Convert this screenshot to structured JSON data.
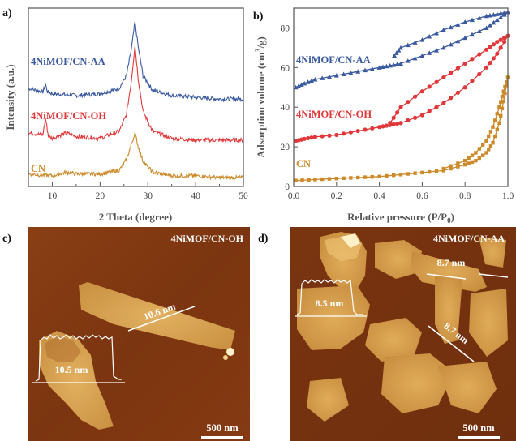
{
  "panels": {
    "a": "a)",
    "b": "b)",
    "c": "c)",
    "d": "d)"
  },
  "colors": {
    "aa": "#3a5aa0",
    "oh": "#e0383a",
    "cn": "#cc8a2a",
    "axis": "#555555"
  },
  "chart_data": [
    {
      "id": "xrd",
      "type": "line",
      "xlabel": "2 Theta (degree)",
      "ylabel": "Intensity (a.u.)",
      "xlim": [
        5,
        50
      ],
      "xticks": [
        "10",
        "20",
        "30",
        "40",
        "50"
      ],
      "series": [
        {
          "name": "4NiMOF/CN-AA",
          "key": "aa",
          "x": [
            5,
            8,
            8.6,
            9,
            10,
            15,
            20,
            24,
            25.5,
            26.5,
            27.3,
            28,
            29,
            31,
            35,
            40,
            45,
            50
          ],
          "y": [
            55,
            53,
            57,
            53,
            52,
            51,
            52,
            55,
            62,
            76,
            92,
            78,
            62,
            54,
            51,
            50,
            49,
            49
          ]
        },
        {
          "name": "4NiMOF/CN-OH",
          "key": "oh",
          "x": [
            5,
            8,
            8.6,
            9.2,
            10,
            13,
            15,
            20,
            24,
            25.5,
            26.5,
            27.3,
            28,
            29,
            31,
            35,
            40,
            45,
            50
          ],
          "y": [
            30,
            29,
            38,
            28,
            27,
            30,
            28,
            27,
            31,
            40,
            58,
            79,
            60,
            42,
            31,
            27,
            26,
            26,
            26
          ]
        },
        {
          "name": "CN",
          "key": "cn",
          "x": [
            5,
            10,
            13,
            15,
            20,
            24,
            25.5,
            26.5,
            27.3,
            28,
            29,
            31,
            35,
            40,
            45,
            50
          ],
          "y": [
            7,
            6,
            8,
            7,
            7,
            9,
            15,
            23,
            30,
            22,
            14,
            8,
            6,
            6,
            5,
            5
          ]
        }
      ]
    },
    {
      "id": "bet",
      "type": "line",
      "xlabel": "Relative pressure (P/P",
      "xlabel_sub": "0",
      "xlabel_end": ")",
      "ylabel": "Adsorption volume (cm",
      "ylabel_sup": "3",
      "ylabel_end": "/g)",
      "xlim": [
        0,
        1
      ],
      "ylim": [
        0,
        90
      ],
      "xticks": [
        "0.0",
        "0.2",
        "0.4",
        "0.6",
        "0.8",
        "1.0"
      ],
      "yticks": [
        "0",
        "20",
        "40",
        "60",
        "80"
      ],
      "series": [
        {
          "name": "4NiMOF/CN-AA",
          "key": "aa",
          "marker": "triangle",
          "adsorption": {
            "x": [
              0.01,
              0.05,
              0.1,
              0.2,
              0.3,
              0.4,
              0.45,
              0.5,
              0.6,
              0.7,
              0.8,
              0.9,
              0.95,
              1.0
            ],
            "y": [
              50,
              52,
              54,
              56,
              58,
              60,
              61,
              62,
              66,
              70,
              75,
              80,
              84,
              88
            ]
          },
          "desorption": {
            "x": [
              1.0,
              0.95,
              0.9,
              0.8,
              0.7,
              0.6,
              0.5,
              0.47
            ],
            "y": [
              88,
              87,
              86,
              83,
              79,
              74,
              70,
              66
            ]
          }
        },
        {
          "name": "4NiMOF/CN-OH",
          "key": "oh",
          "marker": "circle",
          "adsorption": {
            "x": [
              0.01,
              0.05,
              0.1,
              0.2,
              0.3,
              0.4,
              0.45,
              0.5,
              0.6,
              0.7,
              0.8,
              0.9,
              0.95,
              1.0
            ],
            "y": [
              23,
              24,
              25,
              26,
              28,
              30,
              31,
              32,
              36,
              42,
              50,
              60,
              67,
              76
            ]
          },
          "desorption": {
            "x": [
              1.0,
              0.95,
              0.9,
              0.8,
              0.7,
              0.6,
              0.5,
              0.45
            ],
            "y": [
              76,
              73,
              69,
              62,
              55,
              48,
              40,
              32
            ]
          }
        },
        {
          "name": "CN",
          "key": "cn",
          "marker": "square",
          "adsorption": {
            "x": [
              0.01,
              0.1,
              0.2,
              0.3,
              0.4,
              0.5,
              0.6,
              0.7,
              0.8,
              0.85,
              0.9,
              0.93,
              0.96,
              0.98,
              1.0
            ],
            "y": [
              3,
              3.5,
              4,
              4.5,
              5,
              6,
              7,
              8,
              11,
              13,
              17,
              22,
              32,
              43,
              55
            ]
          },
          "desorption": {
            "x": [
              1.0,
              0.98,
              0.96,
              0.93,
              0.9,
              0.85,
              0.8,
              0.7
            ],
            "y": [
              55,
              48,
              40,
              30,
              23,
              17,
              13,
              9
            ]
          }
        }
      ]
    }
  ],
  "afm": {
    "c": {
      "title": "4NiMOF/CN-OH",
      "meas1": "10.6 nm",
      "meas2": "10.5 nm",
      "scale": "500 nm"
    },
    "d": {
      "title": "4NiMOF/CN-AA",
      "meas1": "8.7 nm",
      "meas2": "8.5 nm",
      "meas3": "8.7 nm",
      "scale": "500 nm"
    }
  }
}
